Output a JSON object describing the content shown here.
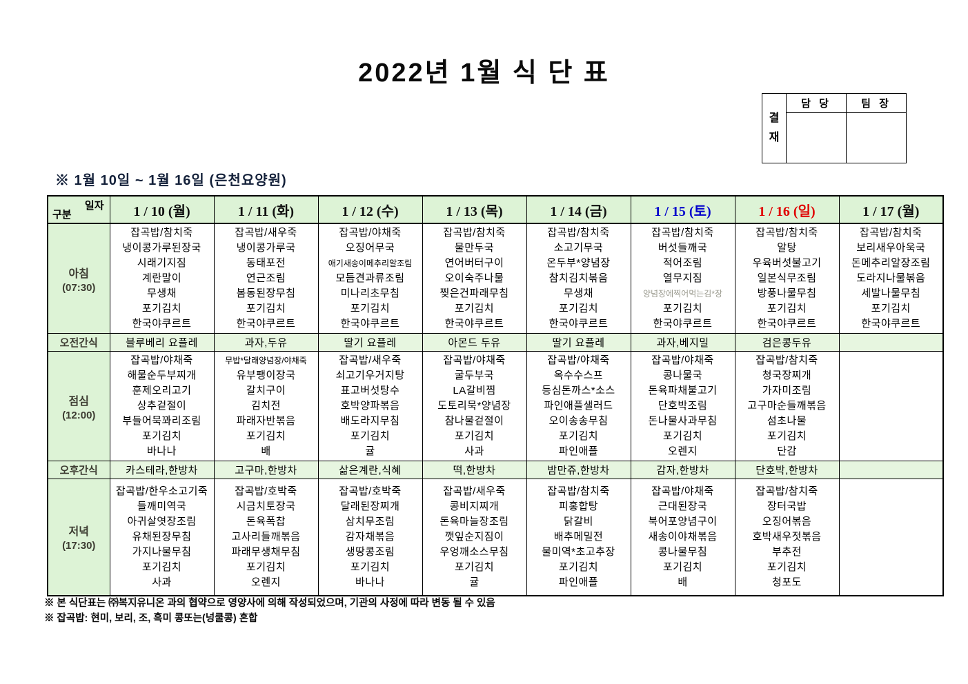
{
  "title": "2022년 1월 식 단 표",
  "approval": {
    "stamp": "결재",
    "columns": [
      "담 당",
      "팀 장"
    ]
  },
  "subtitle": "※  1월  10일  ~  1월  16일  (은천요양원)",
  "table": {
    "corner": {
      "top": "일자",
      "bottom": "구분"
    },
    "days": [
      {
        "label": "1 / 10 (월)",
        "color": "#101010"
      },
      {
        "label": "1 / 11 (화)",
        "color": "#101010"
      },
      {
        "label": "1 / 12 (수)",
        "color": "#101010"
      },
      {
        "label": "1 / 13 (목)",
        "color": "#101010"
      },
      {
        "label": "1 / 14 (금)",
        "color": "#101010"
      },
      {
        "label": "1 / 15 (토)",
        "color": "#0000cc"
      },
      {
        "label": "1 / 16 (일)",
        "color": "#e00000"
      },
      {
        "label": "1 / 17 (월)",
        "color": "#101010"
      }
    ],
    "rows": [
      {
        "type": "meal",
        "label": "아침",
        "time": "(07:30)",
        "cells": [
          [
            "잡곡밥/참치죽",
            "냉이콩가루된장국",
            "시래기지짐",
            "계란말이",
            "무생채",
            "포기김치",
            "한국야쿠르트"
          ],
          [
            "잡곡밥/새우죽",
            "냉이콩가루국",
            "동태포전",
            "연근조림",
            "봄동된장무침",
            "포기김치",
            "한국야쿠르트"
          ],
          [
            "잡곡밥/야채죽",
            "오징어무국",
            "애기새송이메추리알조림",
            "모듬견과류조림",
            "미나리초무침",
            "포기김치",
            "한국야쿠르트"
          ],
          [
            "잡곡밥/참치죽",
            "물만두국",
            "연어버터구이",
            "오이숙주나물",
            "찢은건파래무침",
            "포기김치",
            "한국야쿠르트"
          ],
          [
            "잡곡밥/참치죽",
            "소고기무국",
            "온두부*양념장",
            "참치김치볶음",
            "무생채",
            "포기김치",
            "한국야쿠르트"
          ],
          [
            "잡곡밥/참치죽",
            "버섯들깨국",
            "적어조림",
            "열무지짐",
            "양념장에찍어먹는김*장",
            "포기김치",
            "한국야쿠르트"
          ],
          [
            "잡곡밥/참치죽",
            "알탕",
            "우육버섯불고기",
            "일본식무조림",
            "방풍나물무침",
            "포기김치",
            "한국야쿠르트"
          ],
          [
            "잡곡밥/참치죽",
            "보리새우아욱국",
            "돈메추리알장조림",
            "도라지나물볶음",
            "세발나물무침",
            "포기김치",
            "한국야쿠르트"
          ]
        ]
      },
      {
        "type": "snack",
        "label": "오전간식",
        "cells": [
          "블루베리 요플레",
          "과자,두유",
          "딸기 요플레",
          "아몬드 두유",
          "딸기 요플레",
          "과자,베지밀",
          "검은콩두유",
          ""
        ]
      },
      {
        "type": "meal",
        "label": "점심",
        "time": "(12:00)",
        "cells": [
          [
            "잡곡밥/야채죽",
            "해물순두부찌개",
            "훈제오리고기",
            "상추겉절이",
            "부들어묵꽈리조림",
            "포기김치",
            "바나나"
          ],
          [
            "무밥*달래양념장/야채죽",
            "유부팽이장국",
            "갈치구이",
            "김치전",
            "파래자반볶음",
            "포기김치",
            "배"
          ],
          [
            "잡곡밥/새우죽",
            "쇠고기우거지탕",
            "표고버섯탕수",
            "호박양파볶음",
            "배도라지무침",
            "포기김치",
            "귤"
          ],
          [
            "잡곡밥/야채죽",
            "굴두부국",
            "LA갈비찜",
            "도토리묵*양념장",
            "참나물겉절이",
            "포기김치",
            "사과"
          ],
          [
            "잡곡밥/야채죽",
            "옥수수스프",
            "등심돈까스*소스",
            "파인애플샐러드",
            "오이송송무침",
            "포기김치",
            "파인애플"
          ],
          [
            "잡곡밥/야채죽",
            "콩나물국",
            "돈육파채불고기",
            "단호박조림",
            "돈나물사과무침",
            "포기김치",
            "오렌지"
          ],
          [
            "잡곡밥/참치죽",
            "청국장찌개",
            "가자미조림",
            "고구마순들깨볶음",
            "섬초나물",
            "포기김치",
            "단감"
          ],
          []
        ]
      },
      {
        "type": "snack",
        "label": "오후간식",
        "cells": [
          "카스테라,한방차",
          "고구마,한방차",
          "삶은계란,식혜",
          "떡,한방차",
          "밤만쥬,한방차",
          "감자,한방차",
          "단호박,한방차",
          ""
        ]
      },
      {
        "type": "meal",
        "label": "저녁",
        "time": "(17:30)",
        "cells": [
          [
            "잡곡밥/한우소고기죽",
            "들깨미역국",
            "아귀살엿장조림",
            "유채된장무침",
            "가지나물무침",
            "포기김치",
            "사과"
          ],
          [
            "잡곡밥/호박죽",
            "시금치토장국",
            "돈육폭찹",
            "고사리들깨볶음",
            "파래무생채무침",
            "포기김치",
            "오렌지"
          ],
          [
            "잡곡밥/호박죽",
            "달래된장찌개",
            "삼치무조림",
            "감자채볶음",
            "생땅콩조림",
            "포기김치",
            "바나나"
          ],
          [
            "잡곡밥/새우죽",
            "콩비지찌개",
            "돈육마늘장조림",
            "깻잎순지짐이",
            "우엉깨소스무침",
            "포기김치",
            "귤"
          ],
          [
            "잡곡밥/참치죽",
            "피홍합탕",
            "닭갈비",
            "배추메밀전",
            "물미역*초고추장",
            "포기김치",
            "파인애플"
          ],
          [
            "잡곡밥/야채죽",
            "근대된장국",
            "북어포양념구이",
            "새송이야채볶음",
            "콩나물무침",
            "포기김치",
            "배"
          ],
          [
            "잡곡밥/참치죽",
            "장터국밥",
            "오징어볶음",
            "호박새우젓볶음",
            "부추전",
            "포기김치",
            "청포도"
          ],
          []
        ]
      }
    ]
  },
  "special": {
    "muted_item": {
      "text": "양념장에찍어먹는김*장",
      "color": "#9a9a8e"
    }
  },
  "footnotes": [
    "※ 본 식단표는 ㈜복지유니온 과의 협약으로 영양사에 의해 작성되었으며, 기관의 사정에 따라 변동 될 수 있음",
    "※ 잡곡밥: 현미, 보리, 조, 흑미 콩또는(넝쿨콩) 혼합"
  ],
  "colors": {
    "cell_green": "#ddf3d6",
    "snack_green": "#e7f6e0",
    "saturday_blue": "#0000cc",
    "sunday_red": "#e00000"
  }
}
